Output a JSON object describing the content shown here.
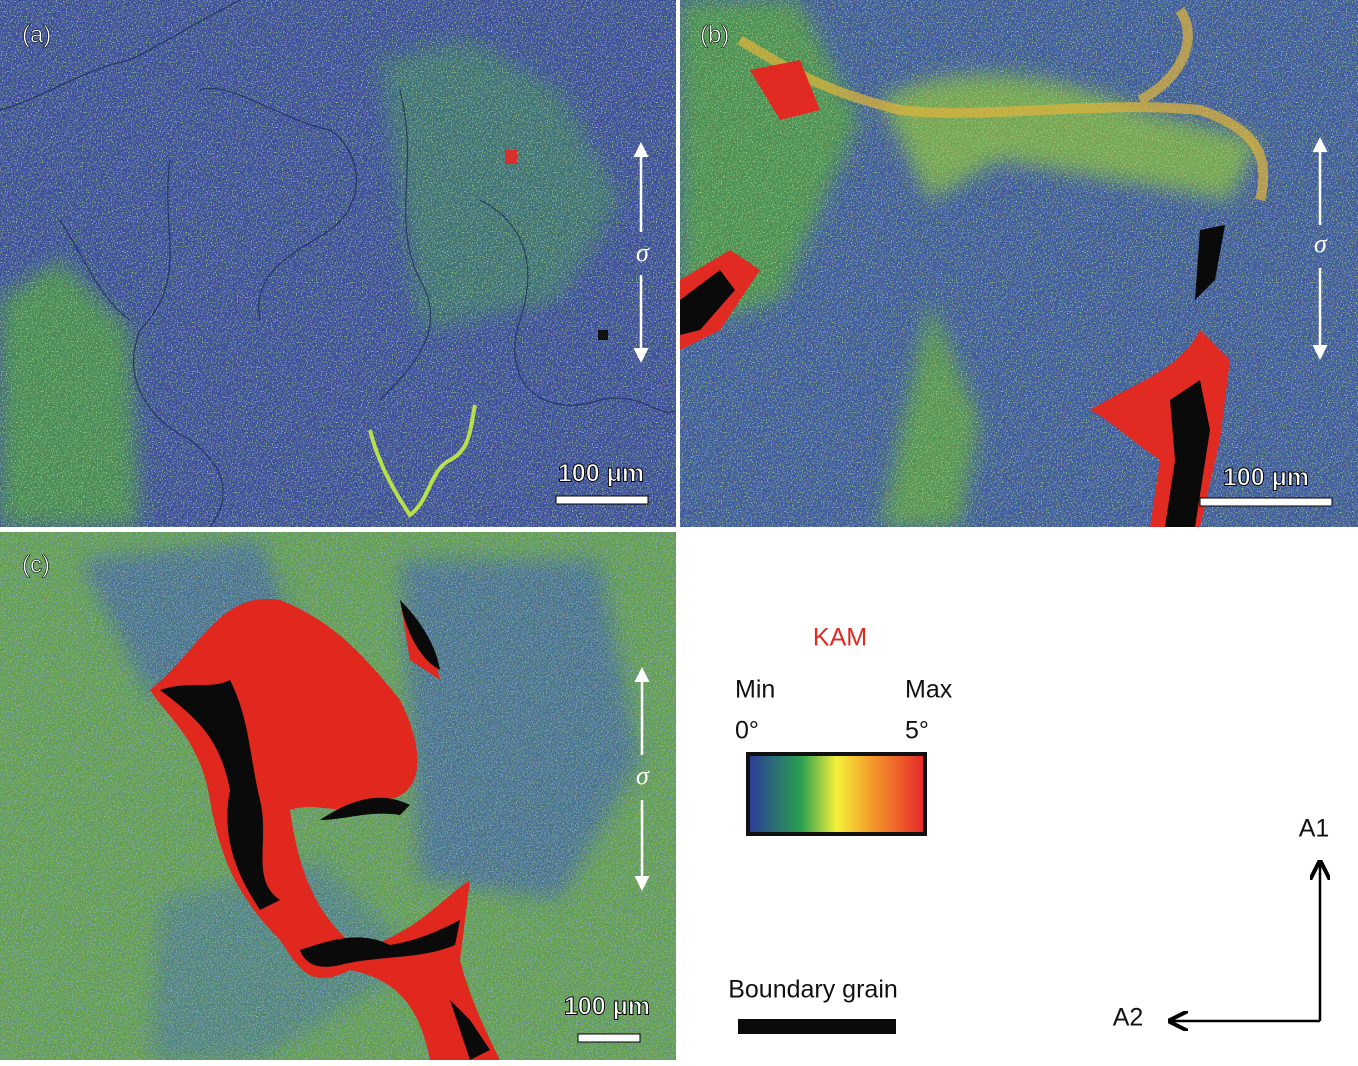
{
  "panels": [
    {
      "label": "(a)",
      "scale_bar": "100 μm",
      "stress": "σ"
    },
    {
      "label": "(b)",
      "scale_bar": "100 μm",
      "stress": "σ"
    },
    {
      "label": "(c)",
      "scale_bar": "100 μm",
      "stress": "σ"
    }
  ],
  "legend": {
    "title": "KAM",
    "min_label": "Min",
    "max_label": "Max",
    "min_value": "0°",
    "max_value": "5°",
    "boundary_label": "Boundary grain"
  },
  "axes": {
    "a1": "A1",
    "a2": "A2"
  }
}
